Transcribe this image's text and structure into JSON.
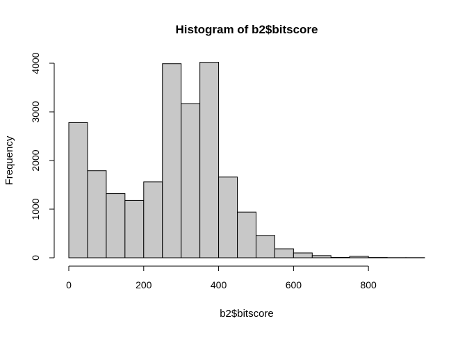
{
  "chart_data": {
    "type": "bar",
    "title": "Histogram of b2$bitscore",
    "xlabel": "b2$bitscore",
    "ylabel": "Frequency",
    "bin_width": 50,
    "bins": [
      {
        "x0": 0,
        "x1": 50,
        "count": 2780
      },
      {
        "x0": 50,
        "x1": 100,
        "count": 1790
      },
      {
        "x0": 100,
        "x1": 150,
        "count": 1320
      },
      {
        "x0": 150,
        "x1": 200,
        "count": 1180
      },
      {
        "x0": 200,
        "x1": 250,
        "count": 1560
      },
      {
        "x0": 250,
        "x1": 300,
        "count": 3990
      },
      {
        "x0": 300,
        "x1": 350,
        "count": 3170
      },
      {
        "x0": 350,
        "x1": 400,
        "count": 4020
      },
      {
        "x0": 400,
        "x1": 450,
        "count": 1660
      },
      {
        "x0": 450,
        "x1": 500,
        "count": 940
      },
      {
        "x0": 500,
        "x1": 550,
        "count": 460
      },
      {
        "x0": 550,
        "x1": 600,
        "count": 185
      },
      {
        "x0": 600,
        "x1": 650,
        "count": 100
      },
      {
        "x0": 650,
        "x1": 700,
        "count": 45
      },
      {
        "x0": 700,
        "x1": 750,
        "count": 8
      },
      {
        "x0": 750,
        "x1": 800,
        "count": 30
      },
      {
        "x0": 800,
        "x1": 850,
        "count": 6
      },
      {
        "x0": 850,
        "x1": 900,
        "count": 3
      },
      {
        "x0": 900,
        "x1": 950,
        "count": 3
      }
    ],
    "xlim": [
      0,
      950
    ],
    "ylim": [
      0,
      4000
    ],
    "x_ticks": [
      0,
      200,
      400,
      600,
      800
    ],
    "y_ticks": [
      0,
      1000,
      2000,
      3000,
      4000
    ],
    "x_axis_extent": [
      0,
      950
    ],
    "y_axis_extent": [
      0,
      4000
    ],
    "grid": false,
    "legend": "none",
    "colors": {
      "bar_fill": "#c8c8c8",
      "bar_stroke": "#000000",
      "axis": "#000000"
    }
  }
}
